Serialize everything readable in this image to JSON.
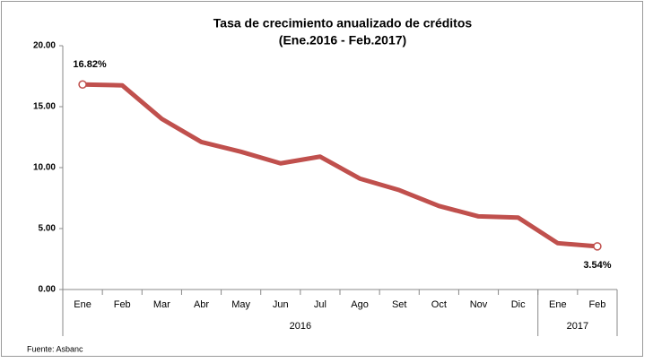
{
  "chart_data": {
    "type": "line",
    "title": "Tasa de crecimiento anualizado de créditos",
    "subtitle": "(Ene.2016 - Feb.2017)",
    "categories": [
      "Ene",
      "Feb",
      "Mar",
      "Abr",
      "May",
      "Jun",
      "Jul",
      "Ago",
      "Set",
      "Oct",
      "Nov",
      "Dic",
      "Ene",
      "Feb"
    ],
    "category_groups": [
      {
        "label": "2016",
        "count": 12
      },
      {
        "label": "2017",
        "count": 2
      }
    ],
    "series": [
      {
        "name": "Tasa de crecimiento",
        "color": "#c0504d",
        "values": [
          16.82,
          16.75,
          14.0,
          12.1,
          11.3,
          10.35,
          10.9,
          9.1,
          8.15,
          6.85,
          6.0,
          5.9,
          3.8,
          3.54
        ],
        "value_labels": [
          "16.82%",
          null,
          null,
          null,
          null,
          null,
          null,
          null,
          null,
          null,
          null,
          null,
          null,
          "3.54%"
        ]
      }
    ],
    "ylim": [
      0,
      20
    ],
    "yticks": [
      {
        "value": 0,
        "label": "0.00"
      },
      {
        "value": 5,
        "label": "5.00"
      },
      {
        "value": 10,
        "label": "10.00"
      },
      {
        "value": 15,
        "label": "15.00"
      },
      {
        "value": 20,
        "label": "20.00"
      }
    ],
    "grid": false,
    "source": "Fuente: Asbanc"
  }
}
